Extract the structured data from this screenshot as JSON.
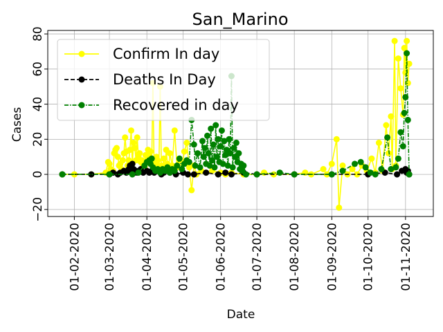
{
  "chart_data": {
    "type": "line",
    "title": "San_Marino",
    "xlabel": "Date",
    "ylabel": "Cases",
    "x_range": [
      "2020-01-10",
      "2020-11-24"
    ],
    "ylim": [
      -24,
      82
    ],
    "x_ticks": [
      "01-02-2020",
      "01-03-2020",
      "01-04-2020",
      "01-05-2020",
      "01-06-2020",
      "01-07-2020",
      "01-08-2020",
      "01-09-2020",
      "01-10-2020",
      "01-11-2020"
    ],
    "y_ticks": [
      "−20",
      "0",
      "20",
      "40",
      "60",
      "80"
    ],
    "grid": true,
    "legend_position": "top-left",
    "series": [
      {
        "name": "Confirm In day",
        "color": "#ffff00",
        "line_style": "solid",
        "points": [
          [
            "2020-01-22",
            0
          ],
          [
            "2020-02-01",
            0
          ],
          [
            "2020-02-15",
            0
          ],
          [
            "2020-02-27",
            1
          ],
          [
            "2020-02-29",
            7
          ],
          [
            "2020-03-01",
            6
          ],
          [
            "2020-03-02",
            3
          ],
          [
            "2020-03-03",
            1
          ],
          [
            "2020-03-04",
            2
          ],
          [
            "2020-03-05",
            12
          ],
          [
            "2020-03-06",
            14
          ],
          [
            "2020-03-07",
            15
          ],
          [
            "2020-03-08",
            10
          ],
          [
            "2020-03-09",
            5
          ],
          [
            "2020-03-10",
            6
          ],
          [
            "2020-03-11",
            3
          ],
          [
            "2020-03-12",
            8
          ],
          [
            "2020-03-13",
            12
          ],
          [
            "2020-03-14",
            21
          ],
          [
            "2020-03-15",
            13
          ],
          [
            "2020-03-16",
            5
          ],
          [
            "2020-03-17",
            8
          ],
          [
            "2020-03-18",
            14
          ],
          [
            "2020-03-19",
            25
          ],
          [
            "2020-03-20",
            6
          ],
          [
            "2020-03-21",
            18
          ],
          [
            "2020-03-22",
            15
          ],
          [
            "2020-03-23",
            8
          ],
          [
            "2020-03-24",
            21
          ],
          [
            "2020-03-25",
            10
          ],
          [
            "2020-03-26",
            12
          ],
          [
            "2020-03-27",
            7
          ],
          [
            "2020-03-28",
            8
          ],
          [
            "2020-03-29",
            5
          ],
          [
            "2020-03-30",
            6
          ],
          [
            "2020-03-31",
            11
          ],
          [
            "2020-04-01",
            2
          ],
          [
            "2020-04-02",
            14
          ],
          [
            "2020-04-03",
            9
          ],
          [
            "2020-04-04",
            13
          ],
          [
            "2020-04-05",
            7
          ],
          [
            "2020-04-06",
            52
          ],
          [
            "2020-04-07",
            3
          ],
          [
            "2020-04-08",
            6
          ],
          [
            "2020-04-09",
            10
          ],
          [
            "2020-04-10",
            8
          ],
          [
            "2020-04-11",
            4
          ],
          [
            "2020-04-12",
            50
          ],
          [
            "2020-04-13",
            5
          ],
          [
            "2020-04-14",
            3
          ],
          [
            "2020-04-15",
            9
          ],
          [
            "2020-04-16",
            2
          ],
          [
            "2020-04-17",
            14
          ],
          [
            "2020-04-18",
            6
          ],
          [
            "2020-04-19",
            3
          ],
          [
            "2020-04-20",
            12
          ],
          [
            "2020-04-22",
            5
          ],
          [
            "2020-04-24",
            25
          ],
          [
            "2020-04-26",
            4
          ],
          [
            "2020-04-28",
            8
          ],
          [
            "2020-04-30",
            3
          ],
          [
            "2020-05-02",
            13
          ],
          [
            "2020-05-04",
            18
          ],
          [
            "2020-05-06",
            4
          ],
          [
            "2020-05-08",
            -9
          ],
          [
            "2020-05-10",
            5
          ],
          [
            "2020-05-12",
            0
          ],
          [
            "2020-05-16",
            2
          ],
          [
            "2020-05-20",
            1
          ],
          [
            "2020-05-25",
            2
          ],
          [
            "2020-06-01",
            1
          ],
          [
            "2020-06-05",
            0
          ],
          [
            "2020-06-10",
            1
          ],
          [
            "2020-06-20",
            0
          ],
          [
            "2020-07-01",
            0
          ],
          [
            "2020-07-07",
            1
          ],
          [
            "2020-07-15",
            0
          ],
          [
            "2020-08-01",
            0
          ],
          [
            "2020-08-10",
            1
          ],
          [
            "2020-08-15",
            0
          ],
          [
            "2020-08-25",
            3
          ],
          [
            "2020-08-28",
            0
          ],
          [
            "2020-09-01",
            6
          ],
          [
            "2020-09-05",
            20
          ],
          [
            "2020-09-07",
            -19
          ],
          [
            "2020-09-10",
            5
          ],
          [
            "2020-09-14",
            0
          ],
          [
            "2020-09-18",
            3
          ],
          [
            "2020-09-22",
            0
          ],
          [
            "2020-09-26",
            5
          ],
          [
            "2020-09-30",
            2
          ],
          [
            "2020-10-04",
            9
          ],
          [
            "2020-10-07",
            1
          ],
          [
            "2020-10-10",
            18
          ],
          [
            "2020-10-13",
            2
          ],
          [
            "2020-10-16",
            28
          ],
          [
            "2020-10-18",
            12
          ],
          [
            "2020-10-20",
            33
          ],
          [
            "2020-10-21",
            3
          ],
          [
            "2020-10-23",
            76
          ],
          [
            "2020-10-24",
            5
          ],
          [
            "2020-10-26",
            66
          ],
          [
            "2020-10-28",
            49
          ],
          [
            "2020-10-30",
            34
          ],
          [
            "2020-10-31",
            72
          ],
          [
            "2020-11-01",
            58
          ],
          [
            "2020-11-02",
            76
          ],
          [
            "2020-11-03",
            52
          ],
          [
            "2020-11-04",
            63
          ]
        ]
      },
      {
        "name": "Deaths In Day",
        "color": "#000000",
        "line_style": "dashed",
        "points": [
          [
            "2020-01-22",
            0
          ],
          [
            "2020-02-15",
            0
          ],
          [
            "2020-03-01",
            0
          ],
          [
            "2020-03-04",
            1
          ],
          [
            "2020-03-08",
            0
          ],
          [
            "2020-03-10",
            1
          ],
          [
            "2020-03-13",
            2
          ],
          [
            "2020-03-15",
            1
          ],
          [
            "2020-03-16",
            2
          ],
          [
            "2020-03-17",
            3
          ],
          [
            "2020-03-18",
            5
          ],
          [
            "2020-03-19",
            2
          ],
          [
            "2020-03-20",
            6
          ],
          [
            "2020-03-21",
            3
          ],
          [
            "2020-03-22",
            1
          ],
          [
            "2020-03-23",
            2
          ],
          [
            "2020-03-24",
            1
          ],
          [
            "2020-03-26",
            2
          ],
          [
            "2020-03-27",
            3
          ],
          [
            "2020-03-29",
            1
          ],
          [
            "2020-04-01",
            2
          ],
          [
            "2020-04-03",
            1
          ],
          [
            "2020-04-05",
            2
          ],
          [
            "2020-04-07",
            1
          ],
          [
            "2020-04-10",
            2
          ],
          [
            "2020-04-13",
            0
          ],
          [
            "2020-04-15",
            1
          ],
          [
            "2020-04-20",
            1
          ],
          [
            "2020-04-25",
            0
          ],
          [
            "2020-05-01",
            1
          ],
          [
            "2020-05-05",
            0
          ],
          [
            "2020-05-10",
            0
          ],
          [
            "2020-05-20",
            1
          ],
          [
            "2020-05-30",
            0
          ],
          [
            "2020-06-05",
            1
          ],
          [
            "2020-06-10",
            0
          ],
          [
            "2020-06-20",
            1
          ],
          [
            "2020-07-01",
            0
          ],
          [
            "2020-08-01",
            0
          ],
          [
            "2020-09-01",
            0
          ],
          [
            "2020-10-01",
            0
          ],
          [
            "2020-10-15",
            1
          ],
          [
            "2020-10-25",
            0
          ],
          [
            "2020-10-29",
            2
          ],
          [
            "2020-11-01",
            3
          ],
          [
            "2020-11-02",
            1
          ],
          [
            "2020-11-03",
            2
          ],
          [
            "2020-11-04",
            0
          ]
        ]
      },
      {
        "name": "Recovered in day",
        "color": "#008000",
        "line_style": "dashdot",
        "points": [
          [
            "2020-01-22",
            0
          ],
          [
            "2020-03-01",
            0
          ],
          [
            "2020-03-20",
            0
          ],
          [
            "2020-03-25",
            1
          ],
          [
            "2020-03-30",
            5
          ],
          [
            "2020-04-01",
            7
          ],
          [
            "2020-04-03",
            8
          ],
          [
            "2020-04-04",
            6
          ],
          [
            "2020-04-05",
            9
          ],
          [
            "2020-04-06",
            4
          ],
          [
            "2020-04-08",
            2
          ],
          [
            "2020-04-10",
            3
          ],
          [
            "2020-04-12",
            1
          ],
          [
            "2020-04-14",
            3
          ],
          [
            "2020-04-16",
            2
          ],
          [
            "2020-04-18",
            4
          ],
          [
            "2020-04-20",
            1
          ],
          [
            "2020-04-22",
            3
          ],
          [
            "2020-04-24",
            2
          ],
          [
            "2020-04-26",
            5
          ],
          [
            "2020-04-28",
            9
          ],
          [
            "2020-04-30",
            3
          ],
          [
            "2020-05-02",
            6
          ],
          [
            "2020-05-04",
            8
          ],
          [
            "2020-05-06",
            7
          ],
          [
            "2020-05-08",
            31
          ],
          [
            "2020-05-10",
            17
          ],
          [
            "2020-05-11",
            5
          ],
          [
            "2020-05-13",
            12
          ],
          [
            "2020-05-15",
            4
          ],
          [
            "2020-05-17",
            19
          ],
          [
            "2020-05-18",
            10
          ],
          [
            "2020-05-19",
            15
          ],
          [
            "2020-05-20",
            6
          ],
          [
            "2020-05-21",
            22
          ],
          [
            "2020-05-22",
            12
          ],
          [
            "2020-05-23",
            5
          ],
          [
            "2020-05-24",
            26
          ],
          [
            "2020-05-25",
            8
          ],
          [
            "2020-05-26",
            17
          ],
          [
            "2020-05-27",
            4
          ],
          [
            "2020-05-28",
            28
          ],
          [
            "2020-05-29",
            10
          ],
          [
            "2020-05-30",
            20
          ],
          [
            "2020-05-31",
            7
          ],
          [
            "2020-06-01",
            16
          ],
          [
            "2020-06-02",
            25
          ],
          [
            "2020-06-03",
            6
          ],
          [
            "2020-06-04",
            19
          ],
          [
            "2020-06-05",
            11
          ],
          [
            "2020-06-06",
            14
          ],
          [
            "2020-06-07",
            5
          ],
          [
            "2020-06-08",
            20
          ],
          [
            "2020-06-09",
            12
          ],
          [
            "2020-06-10",
            56
          ],
          [
            "2020-06-11",
            4
          ],
          [
            "2020-06-12",
            15
          ],
          [
            "2020-06-13",
            10
          ],
          [
            "2020-06-14",
            18
          ],
          [
            "2020-06-15",
            7
          ],
          [
            "2020-06-16",
            12
          ],
          [
            "2020-06-17",
            3
          ],
          [
            "2020-06-18",
            6
          ],
          [
            "2020-06-19",
            2
          ],
          [
            "2020-06-20",
            5
          ],
          [
            "2020-06-22",
            0
          ],
          [
            "2020-07-01",
            0
          ],
          [
            "2020-07-20",
            1
          ],
          [
            "2020-08-01",
            0
          ],
          [
            "2020-09-01",
            0
          ],
          [
            "2020-09-10",
            2
          ],
          [
            "2020-09-20",
            6
          ],
          [
            "2020-09-25",
            7
          ],
          [
            "2020-09-29",
            4
          ],
          [
            "2020-10-03",
            1
          ],
          [
            "2020-10-07",
            0
          ],
          [
            "2020-10-12",
            3
          ],
          [
            "2020-10-17",
            21
          ],
          [
            "2020-10-20",
            3
          ],
          [
            "2020-10-24",
            4
          ],
          [
            "2020-10-26",
            9
          ],
          [
            "2020-10-28",
            24
          ],
          [
            "2020-10-30",
            16
          ],
          [
            "2020-10-31",
            35
          ],
          [
            "2020-11-01",
            44
          ],
          [
            "2020-11-02",
            69
          ],
          [
            "2020-11-03",
            31
          ],
          [
            "2020-11-04",
            0
          ]
        ]
      }
    ]
  }
}
